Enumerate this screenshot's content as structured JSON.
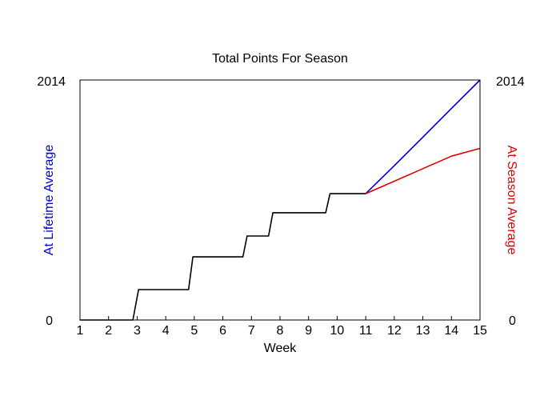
{
  "chart_data": {
    "type": "line",
    "title": "Total Points For Season",
    "xlabel": "Week",
    "ylabel_left": "At Lifetime Average",
    "ylabel_right": "At Season Average",
    "xlim": [
      1,
      15
    ],
    "ylim": [
      0,
      2014
    ],
    "x_ticks": [
      "1",
      "2",
      "3",
      "4",
      "5",
      "6",
      "7",
      "8",
      "9",
      "10",
      "11",
      "12",
      "13",
      "14",
      "15"
    ],
    "y_tick_labels_left": [
      "0",
      "2014"
    ],
    "y_tick_labels_right": [
      "0",
      "2014"
    ],
    "grid": false,
    "colors": {
      "actual": "#000000",
      "lifetime": "#0000cc",
      "season": "#dd0000",
      "axis": "#000000"
    },
    "series": [
      {
        "key": "actual",
        "x": [
          1,
          2.85,
          3.05,
          4.8,
          4.95,
          6.7,
          6.85,
          7.6,
          7.75,
          9.6,
          9.75,
          11
        ],
        "y": [
          0,
          0,
          255,
          255,
          530,
          530,
          705,
          705,
          900,
          900,
          1060,
          1060
        ]
      },
      {
        "key": "lifetime",
        "x": [
          11,
          12,
          13,
          14,
          15
        ],
        "y": [
          1060,
          1295,
          1535,
          1775,
          2014
        ]
      },
      {
        "key": "season",
        "x": [
          11,
          12,
          13,
          14,
          15
        ],
        "y": [
          1060,
          1165,
          1270,
          1375,
          1440
        ]
      }
    ]
  }
}
